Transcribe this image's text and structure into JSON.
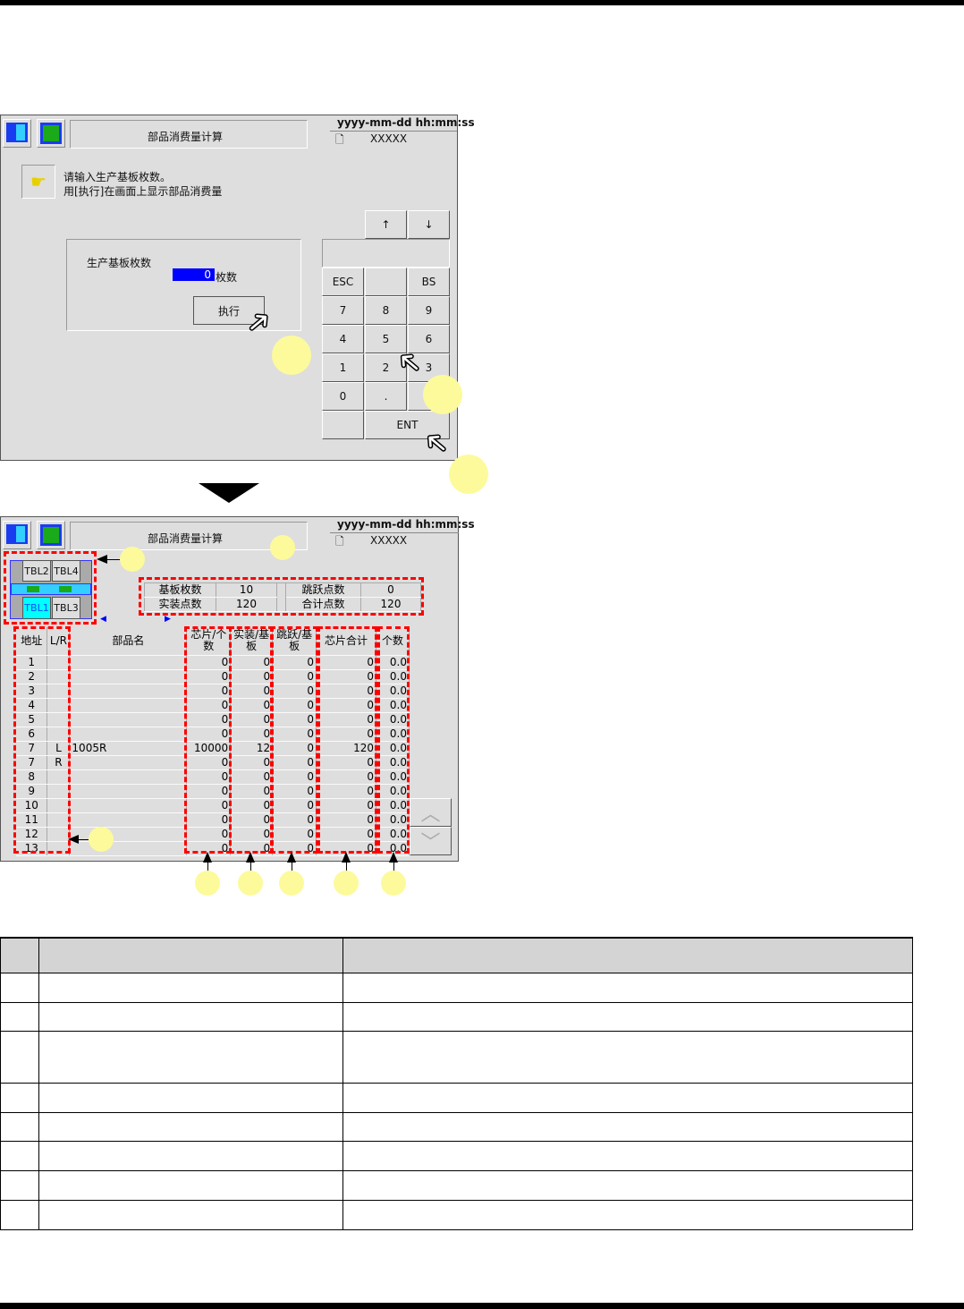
{
  "screen_top": {
    "title": "部品消费量计算",
    "datetime": "yyyy-mm-dd  hh:mm:ss",
    "file_name": "XXXXX",
    "message_line1": "请输入生产基板枚数。",
    "message_line2": "用[执行]在画面上显示部品消费量",
    "input_label": "生产基板枚数",
    "input_value": "0",
    "input_unit": "枚数",
    "execute_label": "执行",
    "arrow_up": "↑",
    "arrow_down": "↓",
    "keys": [
      "ESC",
      "",
      "BS",
      "7",
      "8",
      "9",
      "4",
      "5",
      "6",
      "1",
      "2",
      "3",
      "0",
      ".",
      "",
      ""
    ],
    "enter_label": "ENT"
  },
  "screen_bottom": {
    "title": "部品消费量计算",
    "datetime": "yyyy-mm-dd  hh:mm:ss",
    "file_name": "XXXXX",
    "tables": [
      "TBL2",
      "TBL4",
      "TBL1",
      "TBL3"
    ],
    "summary": {
      "board_count_label": "基板枚数",
      "board_count": "10",
      "skip_points_label": "跳跃点数",
      "skip_points": "0",
      "mount_points_label": "实装点数",
      "mount_points": "120",
      "total_points_label": "合计点数",
      "total_points": "120"
    },
    "columns": [
      "地址",
      "L/R",
      "部品名",
      "芯片/个数",
      "实装/基板",
      "跳跃/基板",
      "芯片合计",
      "个数"
    ],
    "rows": [
      [
        "1",
        "",
        "",
        "0",
        "0",
        "0",
        "0",
        "0.0"
      ],
      [
        "2",
        "",
        "",
        "0",
        "0",
        "0",
        "0",
        "0.0"
      ],
      [
        "3",
        "",
        "",
        "0",
        "0",
        "0",
        "0",
        "0.0"
      ],
      [
        "4",
        "",
        "",
        "0",
        "0",
        "0",
        "0",
        "0.0"
      ],
      [
        "5",
        "",
        "",
        "0",
        "0",
        "0",
        "0",
        "0.0"
      ],
      [
        "6",
        "",
        "",
        "0",
        "0",
        "0",
        "0",
        "0.0"
      ],
      [
        "7",
        "L",
        "1005R",
        "10000",
        "12",
        "0",
        "120",
        "0.0"
      ],
      [
        "7",
        "R",
        "",
        "0",
        "0",
        "0",
        "0",
        "0.0"
      ],
      [
        "8",
        "",
        "",
        "0",
        "0",
        "0",
        "0",
        "0.0"
      ],
      [
        "9",
        "",
        "",
        "0",
        "0",
        "0",
        "0",
        "0.0"
      ],
      [
        "10",
        "",
        "",
        "0",
        "0",
        "0",
        "0",
        "0.0"
      ],
      [
        "11",
        "",
        "",
        "0",
        "0",
        "0",
        "0",
        "0.0"
      ],
      [
        "12",
        "",
        "",
        "0",
        "0",
        "0",
        "0",
        "0.0"
      ],
      [
        "13",
        "",
        "",
        "0",
        "0",
        "0",
        "0",
        "0.0"
      ]
    ]
  },
  "colors": {
    "callout": "#fdfa9c",
    "highlight_dash": "#ff0000",
    "input_bg": "#0000ff",
    "active_table": "#00ffff"
  }
}
